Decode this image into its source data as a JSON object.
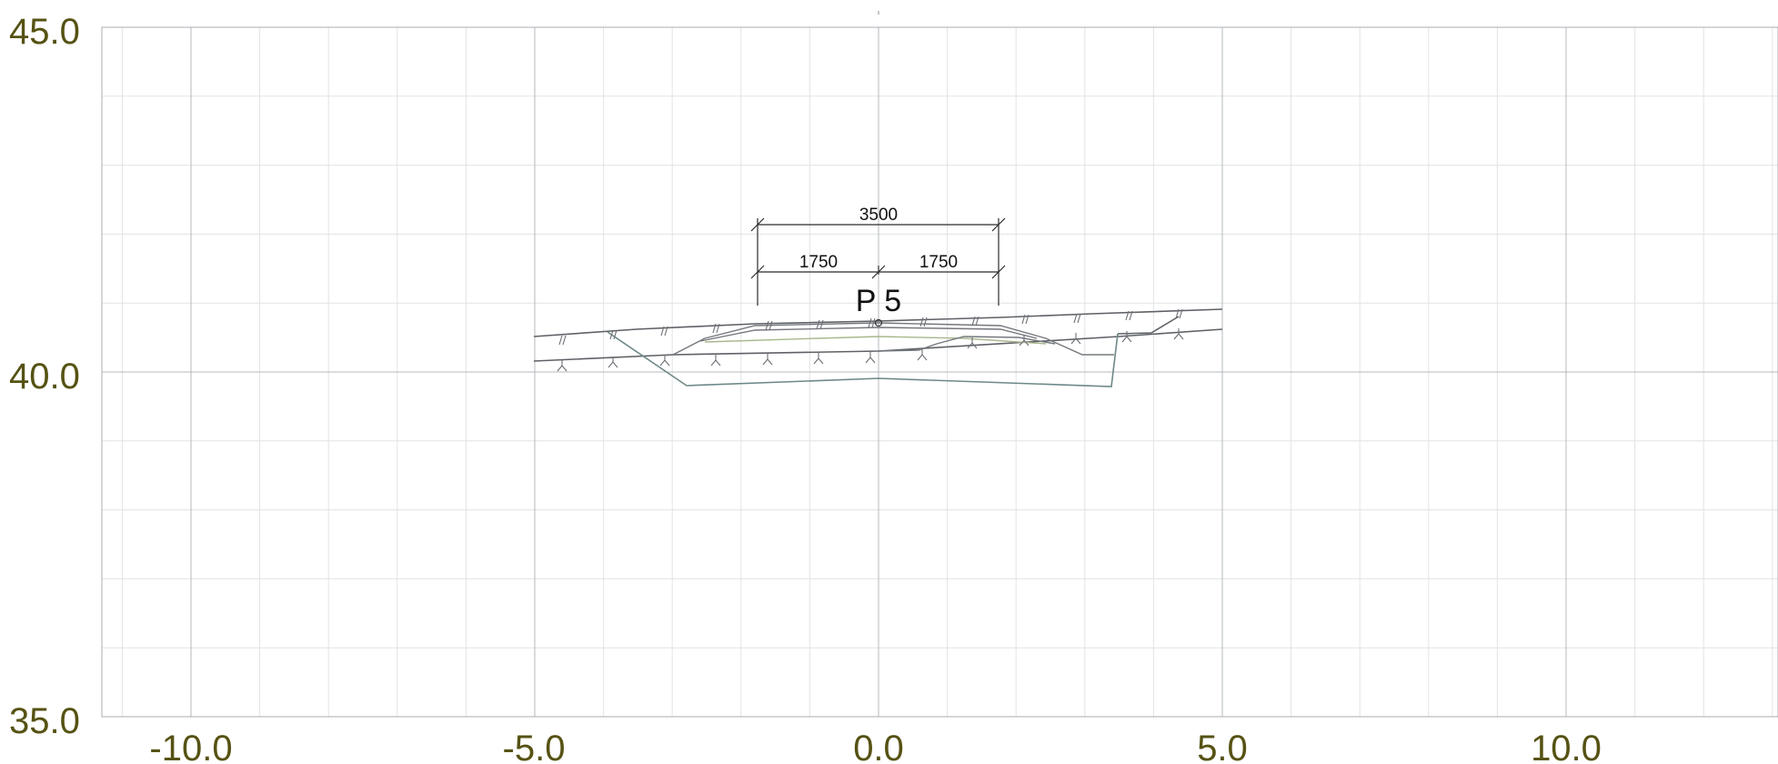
{
  "window": {
    "title": ""
  },
  "axes": {
    "x_tick_labels": [
      "-10.0",
      "-5.0",
      "0.0",
      "5.0",
      "10.0"
    ],
    "y_tick_labels": [
      "45.0",
      "40.0",
      "35.0"
    ],
    "x_major_values": [
      -10,
      -5,
      0,
      5,
      10
    ],
    "y_major_values": [
      45,
      40,
      35
    ],
    "xlim": [
      -11.1,
      13.1
    ],
    "ylim": [
      35,
      45
    ],
    "grid": true,
    "label_color": "#565213"
  },
  "section": {
    "station_label": "P 5",
    "dimension_total": "3500",
    "dimension_left": "1750",
    "dimension_right": "1750"
  },
  "colors": {
    "grid_major": "#b4b8bc",
    "grid_minor": "#e1e3e6",
    "line": "#5e6166",
    "layer_green": "#a9b88d",
    "trench": "#6e8888"
  }
}
